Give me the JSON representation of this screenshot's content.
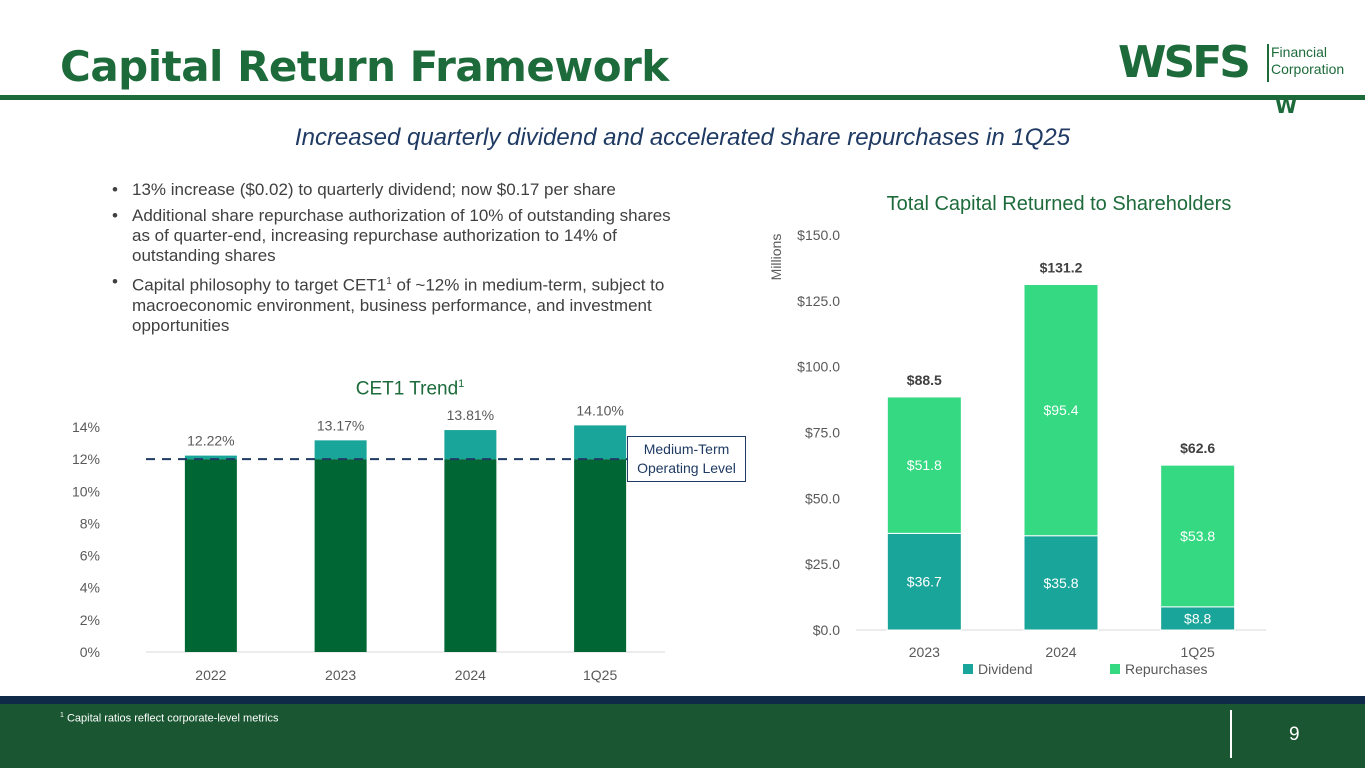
{
  "title": "Capital Return Framework",
  "logo": {
    "mark": "WSFS",
    "sub_line1": "Financial",
    "sub_line2": "Corporation",
    "w": "W"
  },
  "subtitle": "Increased quarterly dividend and accelerated share repurchases in 1Q25",
  "bullets": [
    {
      "text": "13% increase ($0.02) to quarterly dividend; now $0.17 per share"
    },
    {
      "text": "Additional share repurchase authorization of 10% of outstanding shares as of quarter-end, increasing repurchase authorization to 14% of outstanding shares"
    },
    {
      "pre": "Capital philosophy to target CET1",
      "sup": "1",
      "post": " of ~12% in medium-term, subject to macroeconomic environment, business performance, and investment opportunities"
    }
  ],
  "bullet_marker": "•",
  "colors": {
    "brand_green": "#1d6b3b",
    "cet1_base": "#006633",
    "cet1_excess": "#1aa59a",
    "dividend": "#1aa59a",
    "repurchases": "#34d982",
    "target_line": "#1f3a63",
    "footer": "#1a5632"
  },
  "chart_data": [
    {
      "type": "bar",
      "title": "CET1 Trend",
      "title_sup": "1",
      "categories": [
        "2022",
        "2023",
        "2024",
        "1Q25"
      ],
      "values": [
        12.22,
        13.17,
        13.81,
        14.1
      ],
      "value_labels": [
        "12.22%",
        "13.17%",
        "13.81%",
        "14.10%"
      ],
      "ylim": [
        0,
        14
      ],
      "yticks": [
        "0%",
        "2%",
        "4%",
        "6%",
        "8%",
        "10%",
        "12%",
        "14%"
      ],
      "reference_line": {
        "value": 12,
        "style": "dashed",
        "label_line1": "Medium-Term",
        "label_line2": "Operating Level"
      },
      "legend": "none",
      "grid": false
    },
    {
      "type": "bar",
      "stacked": true,
      "title": "Total Capital Returned to Shareholders",
      "ylabel": "Millions",
      "categories": [
        "2023",
        "2024",
        "1Q25"
      ],
      "series": [
        {
          "name": "Dividend",
          "values": [
            36.7,
            35.8,
            8.8
          ],
          "labels": [
            "$36.7",
            "$35.8",
            "$8.8"
          ]
        },
        {
          "name": "Repurchases",
          "values": [
            51.8,
            95.4,
            53.8
          ],
          "labels": [
            "$51.8",
            "$95.4",
            "$53.8"
          ]
        }
      ],
      "totals": [
        88.5,
        131.2,
        62.6
      ],
      "total_labels": [
        "$88.5",
        "$131.2",
        "$62.6"
      ],
      "ylim": [
        0,
        150
      ],
      "yticks": [
        "$0.0",
        "$25.0",
        "$50.0",
        "$75.0",
        "$100.0",
        "$125.0",
        "$150.0"
      ],
      "legend": "bottom",
      "grid": false
    }
  ],
  "footnote": {
    "sup": "1",
    "text": " Capital ratios reflect corporate-level metrics"
  },
  "page_number": "9"
}
